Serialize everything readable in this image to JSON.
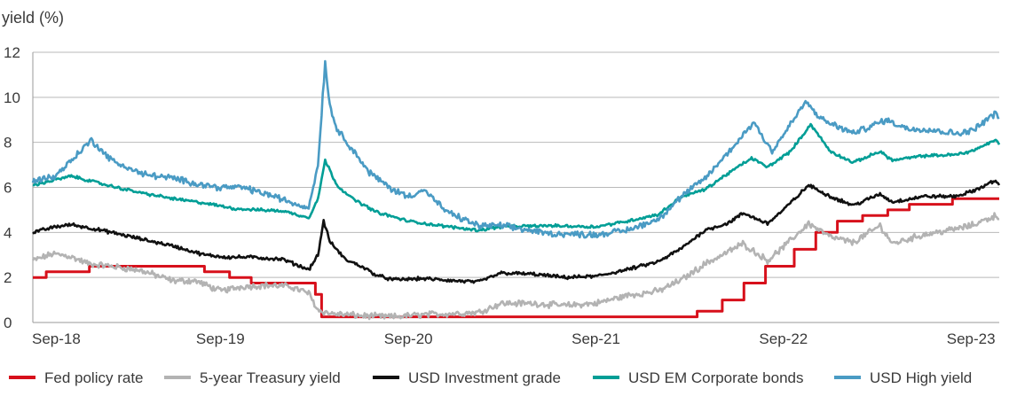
{
  "chart_data": {
    "type": "line",
    "title": "",
    "ylabel": "yield (%)",
    "xlabel": "",
    "ylim": [
      0,
      12
    ],
    "yticks": [
      0,
      2,
      4,
      6,
      8,
      10,
      12
    ],
    "xlim": [
      "2018-09-01",
      "2023-10-26"
    ],
    "xticks": [
      {
        "date": "2018-09-01",
        "label": "Sep-18"
      },
      {
        "date": "2019-09-01",
        "label": "Sep-19"
      },
      {
        "date": "2020-09-01",
        "label": "Sep-20"
      },
      {
        "date": "2021-09-01",
        "label": "Sep-21"
      },
      {
        "date": "2022-09-01",
        "label": "Sep-22"
      },
      {
        "date": "2023-09-01",
        "label": "Sep-23"
      }
    ],
    "grid": "horizontal",
    "legend_position": "bottom",
    "series": [
      {
        "name": "Fed policy rate",
        "color": "#d7101b",
        "step": true,
        "points": [
          [
            "2018-09-01",
            2.0
          ],
          [
            "2018-09-27",
            2.25
          ],
          [
            "2018-12-20",
            2.5
          ],
          [
            "2019-08-01",
            2.25
          ],
          [
            "2019-09-19",
            2.0
          ],
          [
            "2019-10-31",
            1.75
          ],
          [
            "2020-03-04",
            1.25
          ],
          [
            "2020-03-16",
            0.25
          ],
          [
            "2022-03-17",
            0.5
          ],
          [
            "2022-05-05",
            1.0
          ],
          [
            "2022-06-16",
            1.75
          ],
          [
            "2022-07-28",
            2.5
          ],
          [
            "2022-09-22",
            3.25
          ],
          [
            "2022-11-03",
            4.0
          ],
          [
            "2022-12-15",
            4.5
          ],
          [
            "2023-02-02",
            4.75
          ],
          [
            "2023-03-23",
            5.0
          ],
          [
            "2023-05-04",
            5.25
          ],
          [
            "2023-07-27",
            5.5
          ],
          [
            "2023-10-26",
            5.5
          ]
        ]
      },
      {
        "name": "5-year Treasury yield",
        "color": "#b3b3b3",
        "step": false,
        "points": [
          [
            "2018-09-01",
            2.75
          ],
          [
            "2018-10-10",
            3.05
          ],
          [
            "2018-11-10",
            2.95
          ],
          [
            "2018-12-20",
            2.6
          ],
          [
            "2019-02-01",
            2.5
          ],
          [
            "2019-04-01",
            2.3
          ],
          [
            "2019-06-01",
            1.85
          ],
          [
            "2019-07-15",
            1.85
          ],
          [
            "2019-09-01",
            1.4
          ],
          [
            "2019-10-15",
            1.6
          ],
          [
            "2019-12-01",
            1.65
          ],
          [
            "2020-01-15",
            1.6
          ],
          [
            "2020-02-20",
            1.3
          ],
          [
            "2020-03-09",
            0.55
          ],
          [
            "2020-04-01",
            0.4
          ],
          [
            "2020-06-01",
            0.3
          ],
          [
            "2020-08-01",
            0.25
          ],
          [
            "2020-10-01",
            0.35
          ],
          [
            "2020-12-01",
            0.4
          ],
          [
            "2021-01-15",
            0.45
          ],
          [
            "2021-03-01",
            0.85
          ],
          [
            "2021-05-01",
            0.85
          ],
          [
            "2021-07-01",
            0.75
          ],
          [
            "2021-09-01",
            0.85
          ],
          [
            "2021-11-01",
            1.2
          ],
          [
            "2022-01-01",
            1.4
          ],
          [
            "2022-02-15",
            1.9
          ],
          [
            "2022-04-01",
            2.6
          ],
          [
            "2022-05-01",
            2.95
          ],
          [
            "2022-06-14",
            3.5
          ],
          [
            "2022-08-01",
            2.75
          ],
          [
            "2022-09-01",
            3.35
          ],
          [
            "2022-10-20",
            4.4
          ],
          [
            "2022-12-01",
            3.8
          ],
          [
            "2023-01-15",
            3.55
          ],
          [
            "2023-03-08",
            4.3
          ],
          [
            "2023-04-01",
            3.5
          ],
          [
            "2023-06-01",
            3.9
          ],
          [
            "2023-08-01",
            4.15
          ],
          [
            "2023-09-01",
            4.3
          ],
          [
            "2023-10-19",
            4.75
          ],
          [
            "2023-10-26",
            4.6
          ]
        ]
      },
      {
        "name": "USD Investment grade",
        "color": "#111111",
        "step": false,
        "points": [
          [
            "2018-09-01",
            4.0
          ],
          [
            "2018-10-15",
            4.25
          ],
          [
            "2018-11-15",
            4.35
          ],
          [
            "2018-12-20",
            4.2
          ],
          [
            "2019-02-01",
            4.0
          ],
          [
            "2019-04-01",
            3.7
          ],
          [
            "2019-06-01",
            3.4
          ],
          [
            "2019-08-01",
            3.0
          ],
          [
            "2019-09-15",
            2.9
          ],
          [
            "2019-11-01",
            2.9
          ],
          [
            "2020-01-01",
            2.8
          ],
          [
            "2020-02-20",
            2.35
          ],
          [
            "2020-03-09",
            3.0
          ],
          [
            "2020-03-20",
            4.5
          ],
          [
            "2020-04-01",
            3.6
          ],
          [
            "2020-05-01",
            2.8
          ],
          [
            "2020-06-01",
            2.5
          ],
          [
            "2020-07-01",
            2.1
          ],
          [
            "2020-08-01",
            1.9
          ],
          [
            "2020-10-01",
            1.95
          ],
          [
            "2020-12-01",
            1.85
          ],
          [
            "2021-01-15",
            1.8
          ],
          [
            "2021-03-01",
            2.2
          ],
          [
            "2021-05-01",
            2.15
          ],
          [
            "2021-07-01",
            2.0
          ],
          [
            "2021-09-01",
            2.05
          ],
          [
            "2021-11-01",
            2.35
          ],
          [
            "2022-01-01",
            2.7
          ],
          [
            "2022-02-15",
            3.3
          ],
          [
            "2022-04-01",
            4.1
          ],
          [
            "2022-05-15",
            4.4
          ],
          [
            "2022-06-15",
            4.85
          ],
          [
            "2022-08-01",
            4.4
          ],
          [
            "2022-09-01",
            5.0
          ],
          [
            "2022-10-20",
            6.1
          ],
          [
            "2022-12-01",
            5.6
          ],
          [
            "2023-01-15",
            5.2
          ],
          [
            "2023-03-08",
            5.7
          ],
          [
            "2023-04-01",
            5.35
          ],
          [
            "2023-06-01",
            5.6
          ],
          [
            "2023-08-01",
            5.6
          ],
          [
            "2023-09-01",
            5.8
          ],
          [
            "2023-10-19",
            6.3
          ],
          [
            "2023-10-26",
            6.1
          ]
        ]
      },
      {
        "name": "USD EM Corporate bonds",
        "color": "#009e96",
        "step": false,
        "points": [
          [
            "2018-09-01",
            6.1
          ],
          [
            "2018-11-15",
            6.5
          ],
          [
            "2018-12-20",
            6.3
          ],
          [
            "2019-02-01",
            6.05
          ],
          [
            "2019-04-01",
            5.75
          ],
          [
            "2019-06-01",
            5.5
          ],
          [
            "2019-08-01",
            5.3
          ],
          [
            "2019-10-01",
            5.05
          ],
          [
            "2020-01-01",
            4.95
          ],
          [
            "2020-02-20",
            4.65
          ],
          [
            "2020-03-09",
            5.5
          ],
          [
            "2020-03-23",
            7.2
          ],
          [
            "2020-04-15",
            6.1
          ],
          [
            "2020-05-15",
            5.5
          ],
          [
            "2020-07-01",
            4.9
          ],
          [
            "2020-09-01",
            4.5
          ],
          [
            "2020-11-01",
            4.3
          ],
          [
            "2021-01-15",
            4.1
          ],
          [
            "2021-03-01",
            4.25
          ],
          [
            "2021-06-01",
            4.3
          ],
          [
            "2021-09-01",
            4.25
          ],
          [
            "2021-11-01",
            4.5
          ],
          [
            "2022-01-01",
            4.8
          ],
          [
            "2022-02-15",
            5.6
          ],
          [
            "2022-04-01",
            5.9
          ],
          [
            "2022-05-15",
            6.6
          ],
          [
            "2022-07-01",
            7.3
          ],
          [
            "2022-08-01",
            6.9
          ],
          [
            "2022-09-15",
            7.6
          ],
          [
            "2022-10-24",
            8.8
          ],
          [
            "2022-12-01",
            7.6
          ],
          [
            "2023-01-15",
            7.1
          ],
          [
            "2023-03-08",
            7.6
          ],
          [
            "2023-04-01",
            7.2
          ],
          [
            "2023-06-01",
            7.4
          ],
          [
            "2023-08-01",
            7.45
          ],
          [
            "2023-09-01",
            7.6
          ],
          [
            "2023-10-19",
            8.1
          ],
          [
            "2023-10-26",
            7.9
          ]
        ]
      },
      {
        "name": "USD High yield",
        "color": "#4a9bc4",
        "step": false,
        "points": [
          [
            "2018-09-01",
            6.3
          ],
          [
            "2018-10-15",
            6.5
          ],
          [
            "2018-12-24",
            8.1
          ],
          [
            "2019-02-01",
            7.2
          ],
          [
            "2019-04-01",
            6.6
          ],
          [
            "2019-06-01",
            6.4
          ],
          [
            "2019-08-01",
            6.1
          ],
          [
            "2019-09-01",
            6.0
          ],
          [
            "2019-10-15",
            6.0
          ],
          [
            "2019-12-15",
            5.6
          ],
          [
            "2020-01-20",
            5.3
          ],
          [
            "2020-02-20",
            5.1
          ],
          [
            "2020-03-09",
            7.0
          ],
          [
            "2020-03-23",
            11.6
          ],
          [
            "2020-04-01",
            9.6
          ],
          [
            "2020-04-15",
            8.6
          ],
          [
            "2020-05-15",
            7.7
          ],
          [
            "2020-06-15",
            6.7
          ],
          [
            "2020-08-01",
            5.9
          ],
          [
            "2020-09-01",
            5.6
          ],
          [
            "2020-10-01",
            5.9
          ],
          [
            "2020-11-15",
            4.9
          ],
          [
            "2021-01-15",
            4.3
          ],
          [
            "2021-03-01",
            4.3
          ],
          [
            "2021-06-01",
            3.95
          ],
          [
            "2021-09-01",
            3.9
          ],
          [
            "2021-11-01",
            4.1
          ],
          [
            "2022-01-01",
            4.6
          ],
          [
            "2022-02-15",
            5.6
          ],
          [
            "2022-04-01",
            6.4
          ],
          [
            "2022-05-15",
            7.5
          ],
          [
            "2022-07-05",
            8.9
          ],
          [
            "2022-08-10",
            7.6
          ],
          [
            "2022-09-15",
            8.8
          ],
          [
            "2022-10-14",
            9.8
          ],
          [
            "2022-11-15",
            9.0
          ],
          [
            "2023-01-15",
            8.4
          ],
          [
            "2023-03-20",
            9.0
          ],
          [
            "2023-05-01",
            8.6
          ],
          [
            "2023-06-01",
            8.6
          ],
          [
            "2023-08-01",
            8.4
          ],
          [
            "2023-09-01",
            8.5
          ],
          [
            "2023-10-19",
            9.3
          ],
          [
            "2023-10-26",
            9.1
          ]
        ]
      }
    ]
  }
}
